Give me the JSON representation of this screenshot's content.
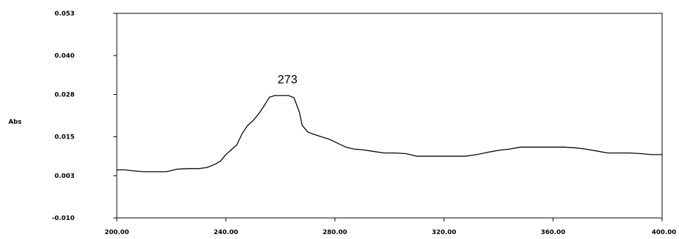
{
  "chart_data": {
    "type": "line",
    "title": "",
    "ylabel": "Abs",
    "xlabel": "",
    "xlim": [
      200,
      400
    ],
    "ylim": [
      -0.01,
      0.053
    ],
    "grid": false,
    "x_tick_values": [
      200,
      240,
      280,
      320,
      360,
      400
    ],
    "x_tick_labels": [
      "200.00",
      "240.00",
      "280.00",
      "320.00",
      "360.00",
      "400.00"
    ],
    "y_tick_values": [
      0.053,
      0.04,
      0.028,
      0.015,
      0.003,
      -0.01
    ],
    "y_tick_labels": [
      "0.053",
      "0.040",
      "0.028",
      "0.015",
      "0.003",
      "-0.010"
    ],
    "annotations": [
      {
        "text": "273",
        "x": 260,
        "y": 0.031
      }
    ],
    "series": [
      {
        "color": "#000000",
        "x": [
          200,
          203,
          206,
          210,
          214,
          218,
          222,
          226,
          230,
          233,
          236,
          238,
          240,
          242,
          244,
          246,
          248,
          250,
          252,
          254,
          256,
          258,
          261,
          263,
          265,
          267,
          268,
          270,
          272,
          275,
          278,
          281,
          284,
          287,
          290,
          294,
          298,
          302,
          306,
          310,
          316,
          322,
          328,
          332,
          336,
          340,
          344,
          348,
          352,
          356,
          360,
          364,
          368,
          372,
          376,
          380,
          384,
          388,
          392,
          396,
          400
        ],
        "y": [
          0.0048,
          0.0048,
          0.0045,
          0.0042,
          0.0042,
          0.0042,
          0.005,
          0.0052,
          0.0052,
          0.0055,
          0.0065,
          0.0075,
          0.0095,
          0.011,
          0.0125,
          0.016,
          0.0185,
          0.02,
          0.022,
          0.0245,
          0.0272,
          0.0277,
          0.0277,
          0.0277,
          0.027,
          0.0225,
          0.0185,
          0.0165,
          0.0158,
          0.015,
          0.0142,
          0.013,
          0.0118,
          0.0112,
          0.011,
          0.0105,
          0.01,
          0.01,
          0.0098,
          0.009,
          0.009,
          0.009,
          0.009,
          0.0095,
          0.0102,
          0.0108,
          0.0112,
          0.0118,
          0.0118,
          0.0118,
          0.0118,
          0.0118,
          0.0116,
          0.0112,
          0.0106,
          0.01,
          0.01,
          0.01,
          0.0098,
          0.0095,
          0.0095
        ]
      }
    ]
  }
}
